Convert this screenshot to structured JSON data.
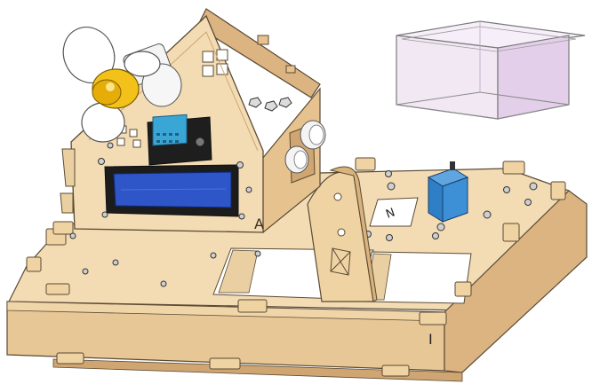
{
  "scene": {
    "description_label_a": "A",
    "description_label_n": "N",
    "description_label_i": "I",
    "colors": {
      "wood_light": "#f3dcb4",
      "wood_mid": "#e8c796",
      "wood_dark": "#cfa672",
      "outline": "#5a4a35",
      "lcd_blue": "#2f56c8",
      "lcd_frame": "#1c1c1c",
      "sensor_blue": "#39a6d6",
      "servo_blue": "#2f7fc6",
      "fan_yellow": "#f2c21b",
      "container_pink": "#e8d6ee",
      "container_edge": "#7a7a7a"
    }
  }
}
